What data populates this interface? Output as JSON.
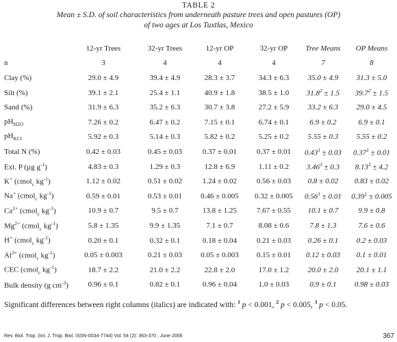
{
  "table_title": "TABLE 2",
  "caption_line1": "Mean ± S.D. of soil characteristics from underneath pasture trees and open pastures (OP)",
  "caption_line2": "of two ages at Los Tuxtlas, Mexico",
  "columns": [
    "12-yr Trees",
    "32-yr Trees",
    "12-yr OP",
    "32-yr OP",
    "Tree Means",
    "OP Means"
  ],
  "n_row": {
    "label": "n",
    "values": [
      "3",
      "4",
      "4",
      "4",
      "7",
      "8"
    ]
  },
  "rows": [
    {
      "label": "Clay (%)",
      "values": [
        "29.0 ± 4.9",
        "39.4 ± 4.9",
        "28.3 ± 3.7",
        "34.3 ± 6.3",
        "35.0 ± 4.9",
        "31.3 ± 5.0"
      ]
    },
    {
      "label": "Silt (%)",
      "values": [
        "39.1 ± 2.1",
        "25.4 ± 1.1",
        "40.9 ± 1.8",
        "38.5 ± 1.0",
        "31.8",
        "± 1.5",
        "39.7",
        "± 1.5"
      ],
      "sup_a": "2",
      "sup_b": "2"
    },
    {
      "label": "Sand (%)",
      "values": [
        "31.9 ± 6.3",
        "35.2 ± 6.3",
        "30.7 ± 3.8",
        "27.2 ± 5.9",
        "33.2 ± 6.3",
        "29.0 ± 4.5"
      ]
    },
    {
      "label": "pH",
      "sub": "H2O",
      "values": [
        "7.26 ± 0.2",
        "6.47 ± 0.2",
        "7.15 ± 0.1",
        "6.74 ± 0.1",
        "6.9 ± 0.2",
        "6.9 ± 0.1"
      ]
    },
    {
      "label": "pH",
      "sub": "KCl",
      "values": [
        "5.92 ± 0.3",
        "5.14 ± 0.3",
        "5.82 ± 0.2",
        "5.25 ± 0.2",
        "5.55 ± 0.3",
        "5.55 ± 0.2"
      ]
    },
    {
      "label": "Total N (%)",
      "values": [
        "0.42 ± 0.03",
        "0.45 ± 0.03",
        "0.37 ± 0.01",
        "0.37 ± 0.01",
        "0.43",
        "± 0.03",
        "0.37",
        "± 0.01"
      ],
      "sup_a": "1",
      "sup_b": "1"
    },
    {
      "label": "Ext. P (µg g",
      "labsup": "-1",
      "labend": ")",
      "values": [
        "4.83 ± 0.3",
        "1.29 ± 0.3",
        "12.8 ± 6.9",
        "1.11 ± 0.2",
        "3.46",
        "± 0.3",
        "8.13",
        "± 4.2"
      ],
      "sup_a": "3",
      "sup_b": "3"
    },
    {
      "label": "K",
      "ion": "+",
      "unit": "c",
      "values": [
        "1.12 ± 0.02",
        "0.51 ± 0.02",
        "1.24 ± 0.02",
        "0.56 ± 0.03",
        "0.8 ± 0.02",
        "0.83 ± 0.02"
      ]
    },
    {
      "label": "Na",
      "ion": "+",
      "unit": "c",
      "values": [
        "0.59 ± 0.01",
        "0.53 ± 0.01",
        "0.46 ± 0.005",
        "0.32 ± 0.005",
        "0.56",
        "± 0.01",
        "0.39",
        "± 0.005"
      ],
      "sup_a": "1",
      "sup_b": "1"
    },
    {
      "label": "Ca",
      "ion": "2+",
      "unit": "c",
      "values": [
        "10.9 ± 0.7",
        "9.5 ± 0.7",
        "13.8 ± 1.25",
        "7.67 ± 0.55",
        "10.1 ± 0.7",
        "9.9 ± 0.8"
      ]
    },
    {
      "label": "Mg",
      "ion": "2+",
      "unit": "c",
      "values": [
        "5.8 ± 1.35",
        "9.9 ± 1.35",
        "7.1 ± 0.7",
        "8.08 ± 0.6",
        "7.8 ± 1.3",
        "7.6 ± 0.6"
      ]
    },
    {
      "label": "H",
      "ion": "+",
      "unit": "c",
      "values": [
        "0.20 ± 0.1",
        "0.32 ± 0.1",
        "0.18 ± 0.04",
        "0.21 ± 0.03",
        "0.26 ± 0.1",
        "0.2 ± 0.03"
      ]
    },
    {
      "label": "Al",
      "ion": "3+",
      "unit": "c",
      "values": [
        "0.05 ± 0.003",
        "0.21 ± 0.03",
        "0.05 ± 0.003",
        "0.15 ± 0.01",
        "0.12 ± 0.03",
        "0.1 ± 0.01"
      ]
    },
    {
      "label": "CEC",
      "ion": "",
      "unit": "c",
      "values": [
        "18.7 ± 2.2",
        "21.0 ± 2.2",
        "22.8 ± 2.0",
        "17.0 ± 1.2",
        "20.0 ± 2.0",
        "20.1 ± 1.1"
      ]
    },
    {
      "label": "Bulk density (g cm",
      "labsup": "-3",
      "labend": ")",
      "values": [
        "0.96 ± 0.1",
        "0.82 ± 0.1",
        "0.96 ± 0.04",
        "1.0 ± 0.03",
        "0.9 ± 0.1",
        "0.98 ± 0.03"
      ]
    }
  ],
  "unit_cmol": "(cmol",
  "unit_kg": "kg",
  "unit_kg_sup": "-1",
  "unit_close": ")",
  "footnote": {
    "lead": "Significant differences between right columns (italics) are indicated with: ",
    "m1": "1",
    "t1": " p < 0.001, ",
    "m2": "2",
    "t2": " p < 0.005, ",
    "m3": "3",
    "t3": " p < 0.05."
  },
  "journal": "Rev. Biol. Trop. (Int. J. Trop. Biol. ISSN-0034-7744) Vol. 54 (2): 363-370 , June 2006",
  "page_number": "367"
}
